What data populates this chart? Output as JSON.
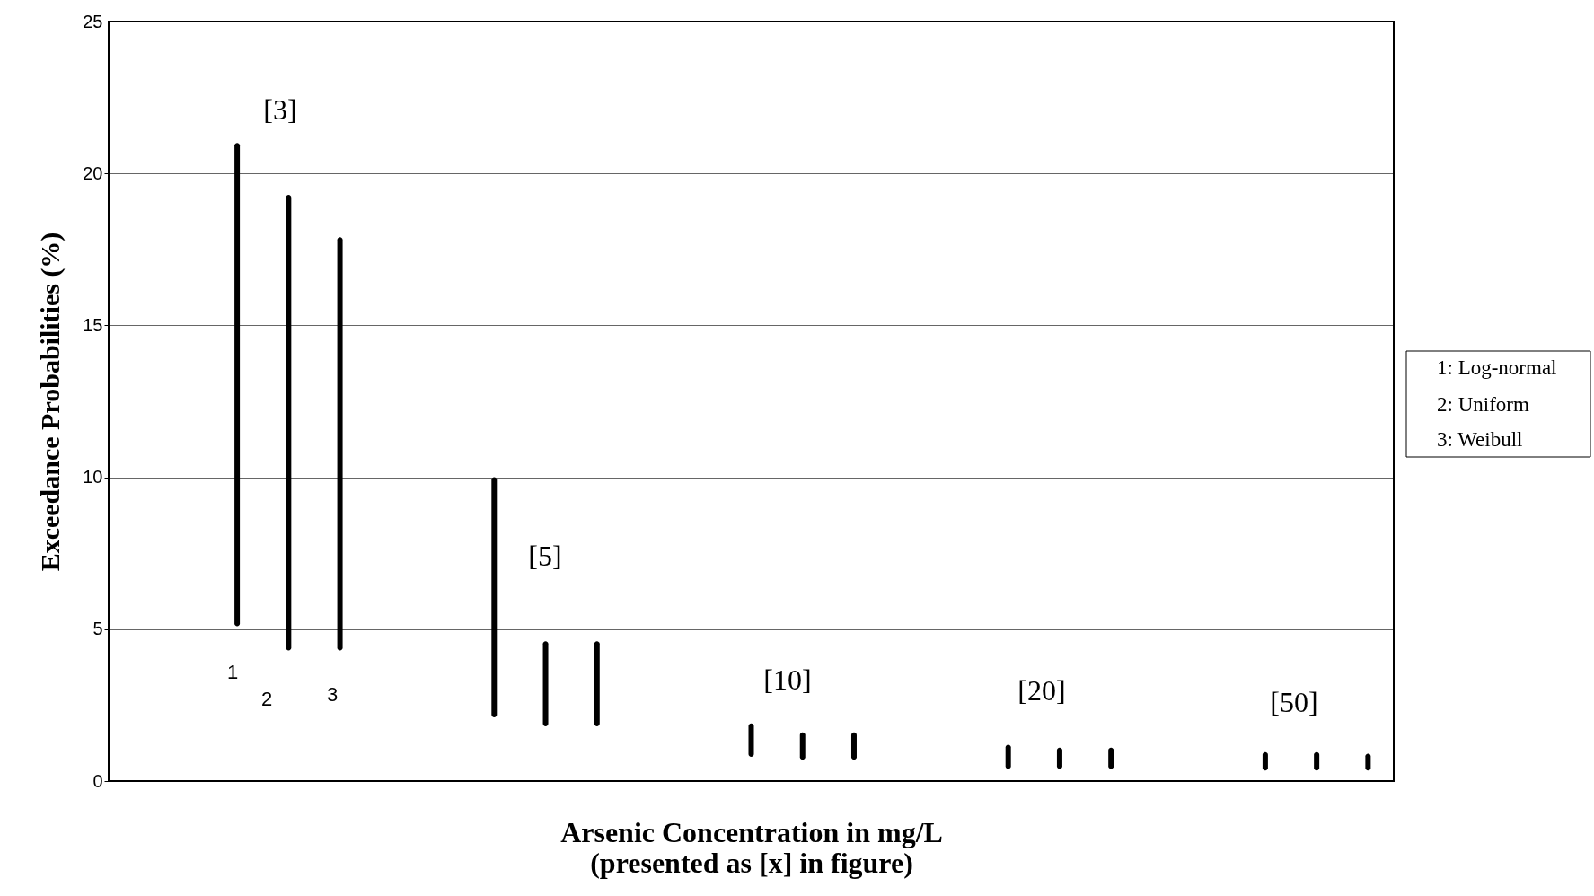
{
  "chart_data": {
    "type": "bar",
    "xlabel": "Arsenic Concentration in mg/L\n(presented as [x] in figure)",
    "ylabel": "Exceedance Probabilities (%)",
    "categories": [
      null,
      null,
      null,
      null,
      null,
      null,
      null,
      null,
      null,
      null,
      null,
      null,
      null,
      null,
      null,
      null,
      null,
      null,
      null,
      null,
      null,
      null,
      null,
      null,
      null
    ],
    "series": [
      {
        "color": "#000000",
        "base": [
          null,
          null,
          5.1,
          4.3,
          4.3,
          null,
          null,
          2.1,
          1.8,
          1.8,
          null,
          null,
          0.8,
          0.7,
          0.7,
          null,
          null,
          0.4,
          0.4,
          0.4,
          null,
          null,
          0.35,
          0.35,
          0.35
        ],
        "values": [
          null,
          null,
          15.9,
          15.0,
          13.6,
          null,
          null,
          7.9,
          2.8,
          2.8,
          null,
          null,
          1.1,
          0.9,
          0.9,
          null,
          null,
          0.8,
          0.7,
          0.7,
          null,
          null,
          0.6,
          0.6,
          0.55
        ]
      }
    ],
    "ylim": [
      0,
      25
    ],
    "yticks": [
      0,
      5,
      10,
      15,
      20,
      25
    ],
    "grid": "y",
    "annotations": [
      "[3]",
      "[5]",
      "[10]",
      "[20]",
      "[50]",
      "1",
      "2",
      "3",
      "1:  Log-normal",
      "2:  Uniform",
      "3:  Weibull"
    ]
  }
}
